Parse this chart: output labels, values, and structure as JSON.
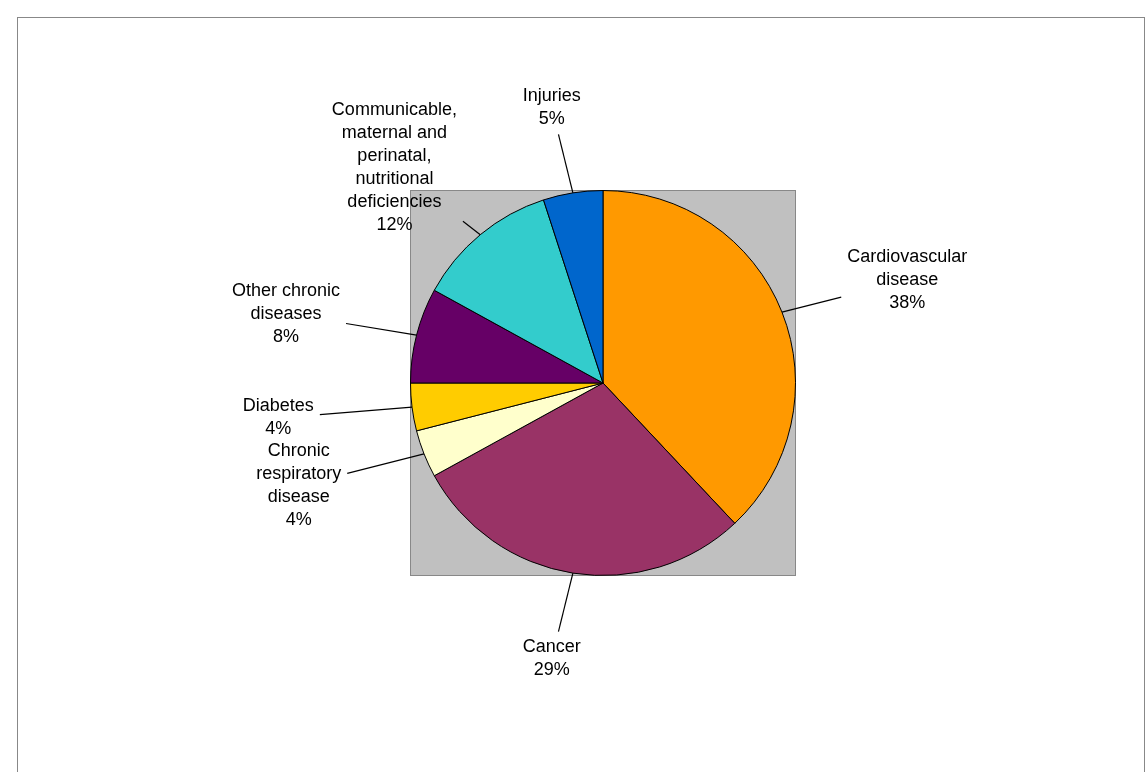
{
  "chart_data": {
    "type": "pie",
    "categories": [
      "Cardiovascular disease",
      "Cancer",
      "Chronic respiratory disease",
      "Diabetes",
      "Other chronic diseases",
      "Communicable, maternal and perinatal, nutritional deficiencies",
      "Injuries"
    ],
    "values": [
      38,
      29,
      4,
      4,
      8,
      12,
      5
    ],
    "colors": [
      "#ff9900",
      "#993366",
      "#ffffcc",
      "#ffcc00",
      "#660066",
      "#33cccc",
      "#0066cc"
    ],
    "value_labels": [
      "38%",
      "29%",
      "4%",
      "4%",
      "8%",
      "12%",
      "5%"
    ],
    "legend": false
  }
}
